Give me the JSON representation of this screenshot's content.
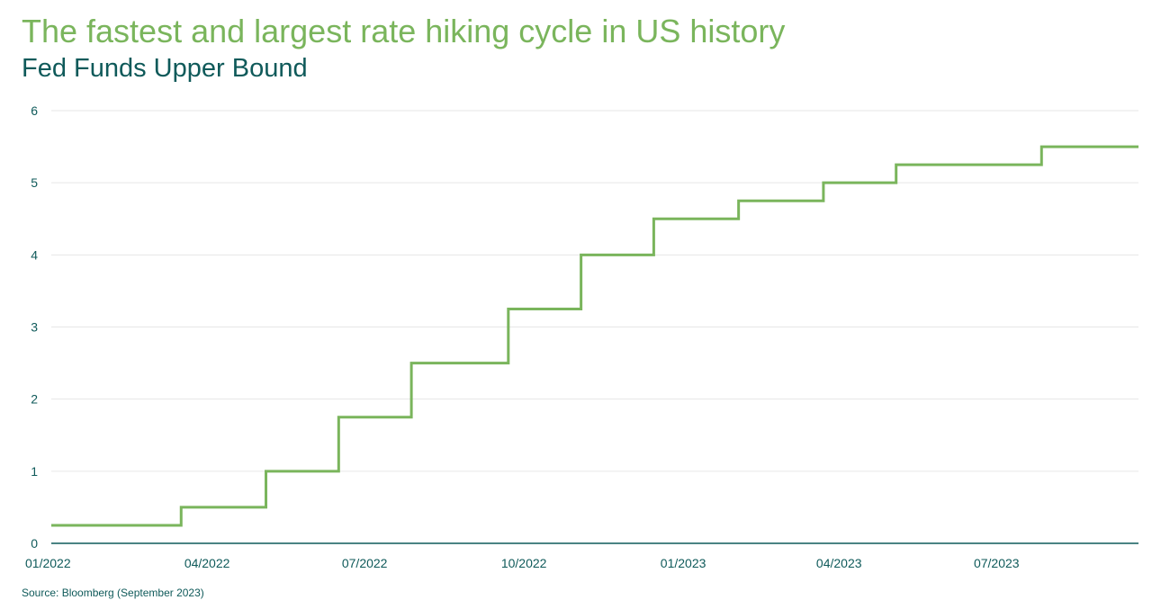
{
  "header": {
    "title": "The fastest and largest rate hiking cycle in US history",
    "subtitle": "Fed Funds Upper Bound"
  },
  "footer": {
    "source": "Source: Bloomberg (September 2023)"
  },
  "colors": {
    "title": "#7ab55c",
    "subtitle": "#0f5a5a",
    "line": "#7ab55c",
    "axis": "#0f5a5a",
    "grid": "#e6e6e6"
  },
  "chart_data": {
    "type": "line",
    "step": true,
    "title": "The fastest and largest rate hiking cycle in US history",
    "subtitle": "Fed Funds Upper Bound",
    "xlabel": "",
    "ylabel": "",
    "xlim": [
      "2022-01-01",
      "2023-09-21"
    ],
    "ylim": [
      0,
      6
    ],
    "grid": true,
    "x_ticks": [
      "01/2022",
      "04/2022",
      "07/2022",
      "10/2022",
      "01/2023",
      "04/2023",
      "07/2023"
    ],
    "y_ticks": [
      "0",
      "1",
      "2",
      "3",
      "4",
      "5",
      "6"
    ],
    "series": [
      {
        "x": [
          "2022-01-01",
          "2022-03-17",
          "2022-05-05",
          "2022-06-16",
          "2022-07-28",
          "2022-09-22",
          "2022-11-03",
          "2022-12-15",
          "2023-02-02",
          "2023-03-23",
          "2023-05-04",
          "2023-07-27",
          "2023-09-21"
        ],
        "values": [
          0.25,
          0.5,
          1.0,
          1.75,
          2.5,
          3.25,
          4.0,
          4.5,
          4.75,
          5.0,
          5.25,
          5.5,
          5.5
        ]
      }
    ]
  }
}
